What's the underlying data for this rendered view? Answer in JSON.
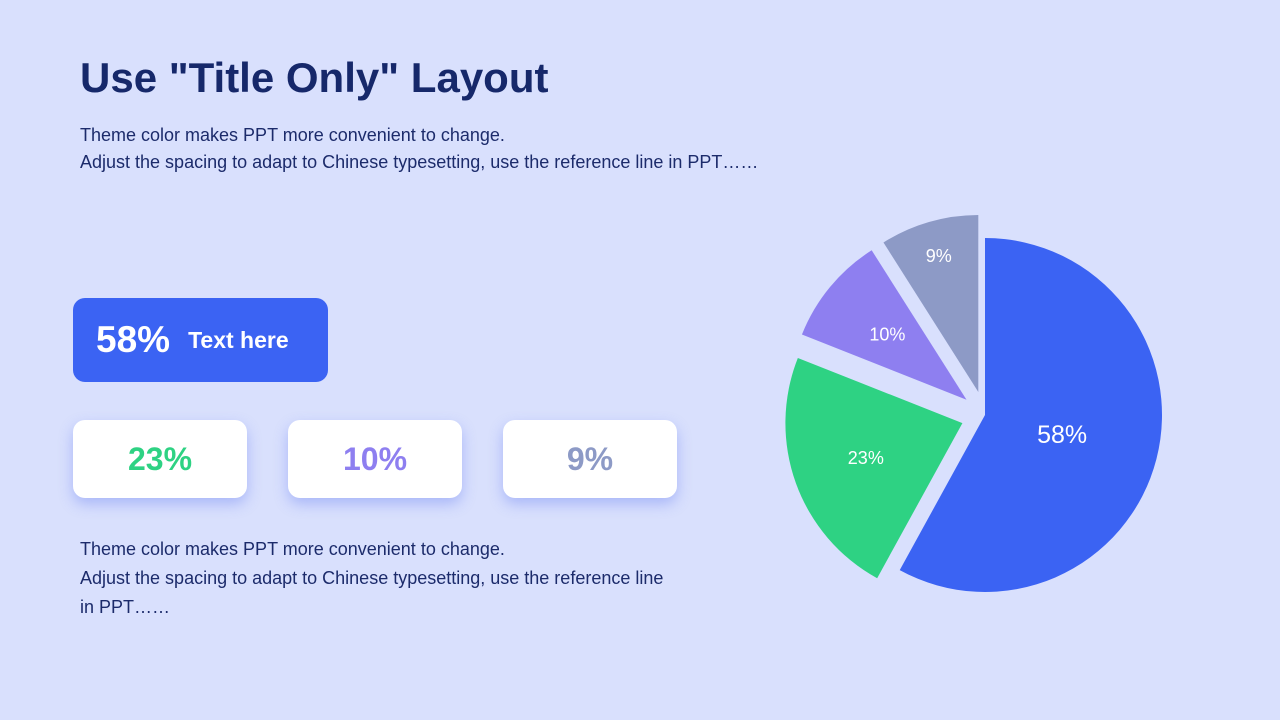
{
  "slide": {
    "title": "Use \"Title Only\" Layout",
    "subtitle_lines": [
      "Theme color makes PPT more convenient to change.",
      "Adjust the spacing to adapt to Chinese typesetting, use the reference line in PPT……"
    ]
  },
  "highlight_card": {
    "value": "58%",
    "label": "Text here",
    "color": "#3b63f3"
  },
  "stat_cards": [
    {
      "value": "23%",
      "color": "#2ed283"
    },
    {
      "value": "10%",
      "color": "#8e7ff0"
    },
    {
      "value": "9%",
      "color": "#8d9ac6"
    }
  ],
  "body_text": {
    "line1": "Theme color makes PPT more convenient to change.",
    "line2": "Adjust the spacing to adapt to Chinese typesetting, use the reference line in PPT……"
  },
  "chart_data": {
    "type": "pie",
    "categories": [
      "",
      "",
      "",
      ""
    ],
    "values": [
      58,
      23,
      10,
      9
    ],
    "labels": [
      "58%",
      "23%",
      "10%",
      "9%"
    ],
    "colors": [
      "#3b63f3",
      "#2ed283",
      "#8e7ff0",
      "#8d9ac6"
    ],
    "title": "",
    "legend": "none",
    "exploded": true
  }
}
